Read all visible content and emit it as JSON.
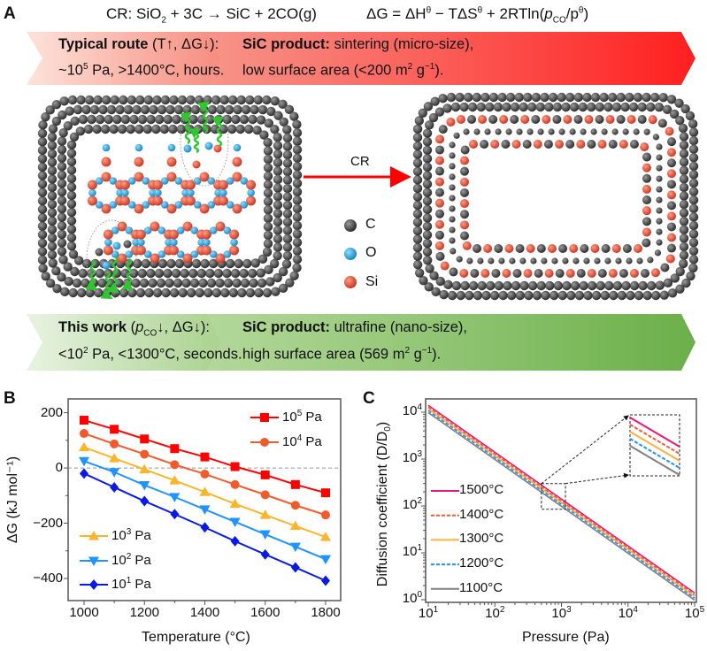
{
  "panel_labels": {
    "a": "A",
    "b": "B",
    "c": "C"
  },
  "equations": {
    "reaction": {
      "pre": "CR: SiO",
      "sub": "2",
      "post": " + 3C → SiC + 2CO(g)"
    },
    "gibbs": {
      "pre": "ΔG = ΔH",
      "sup1": "θ",
      "mid": " − TΔS",
      "sup2": "θ",
      "mid2": " + 2RTln(",
      "p": "p",
      "sub": "CO",
      "slash": "/p",
      "sup3": "θ",
      "end": ")"
    }
  },
  "top_banner": {
    "left": {
      "bold": "Typical route",
      "rest": " (T↑, ΔG↓):",
      "line2_pre": "~10",
      "line2_sup": "5",
      "line2_post": " Pa, >1400°C, hours."
    },
    "right": {
      "bold": "SiC product:",
      "rest": " sintering (micro-size),",
      "line2_pre": "low surface area (<200 m",
      "line2_sup": "2",
      "line2_mid": " g",
      "line2_sup2": "−1",
      "line2_post": ")."
    },
    "colors": [
      "#fde3da",
      "#f68b7e",
      "#f7958a",
      "#ff1f1f"
    ]
  },
  "bottom_banner": {
    "left": {
      "bold": "This work",
      "rest1": " (",
      "p": "p",
      "sub": "CO",
      "rest2": "↓, ΔG↓):",
      "line2_pre": "<10",
      "line2_sup": "2",
      "line2_post": " Pa, <1300°C, seconds."
    },
    "right": {
      "bold": "SiC product:",
      "rest": " ultrafine (nano-size),",
      "line2_pre": "high surface area (569 m",
      "line2_sup": "2",
      "line2_mid": " g",
      "line2_sup2": "−1",
      "line2_post": ")."
    },
    "colors": [
      "#e8f3e2",
      "#a9d28e",
      "#b3d89a",
      "#6bb049"
    ]
  },
  "diagram": {
    "arrow_label": "CR",
    "legend": [
      {
        "label": "C",
        "color": "#3d3d3d"
      },
      {
        "label": "O",
        "color": "#1e9fd8"
      },
      {
        "label": "Si",
        "color": "#e24a33"
      }
    ]
  },
  "chart_data": [
    {
      "type": "line",
      "panel": "B",
      "xlabel": "Temperature (°C)",
      "ylabel": "ΔG (kJ mol⁻¹)",
      "x": [
        1000,
        1100,
        1200,
        1300,
        1400,
        1500,
        1600,
        1700,
        1800
      ],
      "xlim": [
        868,
        1850
      ],
      "ylim": [
        -480,
        250
      ],
      "x_ticks": [
        1000,
        1200,
        1400,
        1600,
        1800
      ],
      "y_ticks": [
        200,
        0,
        -200,
        -400
      ],
      "reference_line": {
        "y": 0,
        "style": "dashed",
        "color": "#999999"
      },
      "series": [
        {
          "name": "10^5 Pa",
          "base": "10",
          "exp": "5",
          "unit": " Pa",
          "color": "#ff0000",
          "marker": "square",
          "values": [
            173,
            140,
            105,
            70,
            40,
            5,
            -25,
            -60,
            -90
          ]
        },
        {
          "name": "10^4 Pa",
          "base": "10",
          "exp": "4",
          "unit": " Pa",
          "color": "#f15a2b",
          "marker": "circle",
          "values": [
            125,
            87,
            50,
            12,
            -22,
            -60,
            -97,
            -135,
            -170
          ]
        },
        {
          "name": "10^3 Pa",
          "base": "10",
          "exp": "3",
          "unit": " Pa",
          "color": "#fbb52b",
          "marker": "triangle-up",
          "values": [
            75,
            35,
            -5,
            -45,
            -87,
            -130,
            -170,
            -210,
            -250
          ]
        },
        {
          "name": "10^2 Pa",
          "base": "10",
          "exp": "2",
          "unit": " Pa",
          "color": "#1f93ff",
          "marker": "triangle-down",
          "values": [
            25,
            -15,
            -62,
            -105,
            -150,
            -195,
            -240,
            -285,
            -330
          ]
        },
        {
          "name": "10^1 Pa",
          "base": "10",
          "exp": "1",
          "unit": " Pa",
          "color": "#0a1ae6",
          "marker": "diamond",
          "values": [
            -20,
            -70,
            -120,
            -167,
            -215,
            -265,
            -313,
            -360,
            -408
          ]
        }
      ],
      "legend": [
        "top-right",
        "bottom-left"
      ]
    },
    {
      "type": "line",
      "panel": "C",
      "xlabel": "Pressure (Pa)",
      "ylabel": "Diffusion coefficient (D/D",
      "ylabel_sub": "0",
      "ylabel_end": ")",
      "x_scale": "log",
      "y_scale": "log",
      "xlim": [
        10,
        100000
      ],
      "ylim": [
        1,
        19000
      ],
      "x_tick_exponents": [
        1,
        2,
        3,
        4,
        5
      ],
      "y_tick_exponents": [
        0,
        1,
        2,
        3,
        4
      ],
      "x": [
        10,
        100000
      ],
      "series": [
        {
          "name": "1500°C",
          "color": "#e8177a",
          "style": "solid",
          "values": [
            14000,
            1.4
          ]
        },
        {
          "name": "1400°C",
          "color": "#f15a2b",
          "style": "dashed",
          "values": [
            12800,
            1.28
          ]
        },
        {
          "name": "1300°C",
          "color": "#fbb040",
          "style": "solid",
          "values": [
            11800,
            1.18
          ]
        },
        {
          "name": "1200°C",
          "color": "#1e90ff",
          "style": "dashed",
          "values": [
            10800,
            1.08
          ]
        },
        {
          "name": "1100°C",
          "color": "#808080",
          "style": "solid",
          "values": [
            9800,
            0.98
          ]
        }
      ],
      "inset": {
        "zoom_region_x": [
          500,
          1150
        ],
        "zoom_region_y": [
          85,
          300
        ]
      },
      "legend": "bottom-left"
    }
  ]
}
